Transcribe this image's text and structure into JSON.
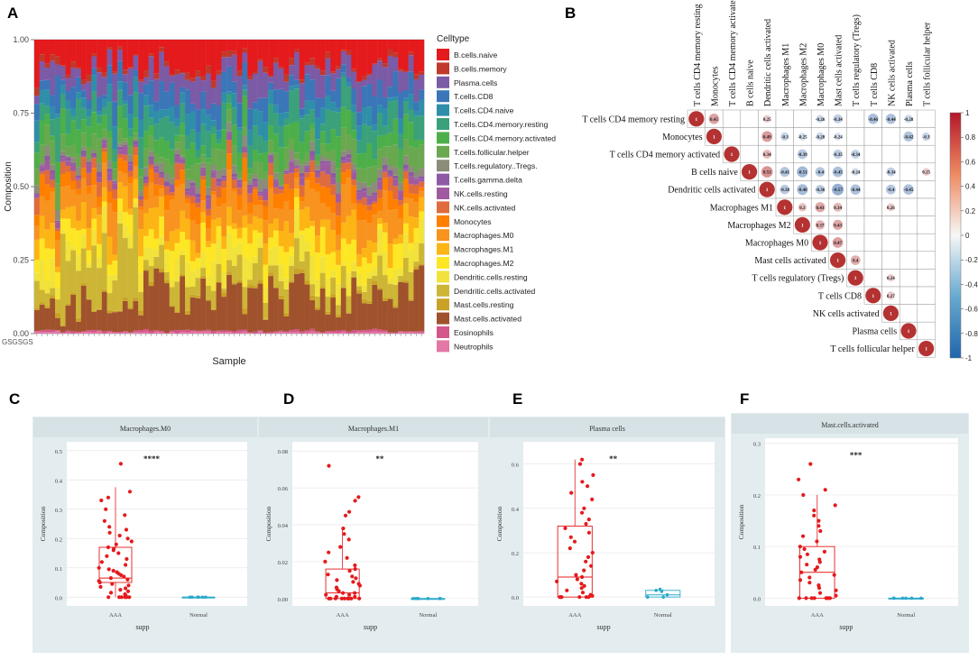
{
  "panel_labels": [
    "A",
    "B",
    "C",
    "D",
    "E",
    "F"
  ],
  "chart_data": [
    {
      "id": "A",
      "type": "bar",
      "subtype": "stacked-100",
      "xlabel": "Sample",
      "ylabel": "Composition",
      "ylim": [
        0,
        1
      ],
      "yticks": [
        "0.00",
        "0.25",
        "0.50",
        "0.75",
        "1.00"
      ],
      "xtick_text": "GSGSGS",
      "legend_title": "Celltype",
      "legend_position": "right",
      "n_samples": 75,
      "celltypes": [
        {
          "name": "B.cells.naive",
          "color": "#e41a1c"
        },
        {
          "name": "B.cells.memory",
          "color": "#c0392b"
        },
        {
          "name": "Plasma.cells",
          "color": "#7b5aa6"
        },
        {
          "name": "T.cells.CD8",
          "color": "#3a76b8"
        },
        {
          "name": "T.cells.CD4.naive",
          "color": "#2f8fa8"
        },
        {
          "name": "T.cells.CD4.memory.resting",
          "color": "#3aa17a"
        },
        {
          "name": "T.cells.CD4.memory.activated",
          "color": "#4daf4a"
        },
        {
          "name": "T.cells.follicular.helper",
          "color": "#6aa84f"
        },
        {
          "name": "T.cells.regulatory..Tregs.",
          "color": "#8c8c7a"
        },
        {
          "name": "T.cells.gamma.delta",
          "color": "#8e5aa3"
        },
        {
          "name": "NK.cells.resting",
          "color": "#a05ba0"
        },
        {
          "name": "NK.cells.activated",
          "color": "#e06b3c"
        },
        {
          "name": "Monocytes",
          "color": "#ff7f00"
        },
        {
          "name": "Macrophages.M0",
          "color": "#f7931e"
        },
        {
          "name": "Macrophages.M1",
          "color": "#fdb515"
        },
        {
          "name": "Macrophages.M2",
          "color": "#fde725"
        },
        {
          "name": "Dendritic.cells.resting",
          "color": "#f1e23c"
        },
        {
          "name": "Dendritic.cells.activated",
          "color": "#cdb536"
        },
        {
          "name": "Mast.cells.resting",
          "color": "#c9a227"
        },
        {
          "name": "Mast.cells.activated",
          "color": "#a0522d"
        },
        {
          "name": "Eosinophils",
          "color": "#d4568a"
        },
        {
          "name": "Neutrophils",
          "color": "#e377a5"
        }
      ]
    },
    {
      "id": "B",
      "type": "heatmap",
      "subtype": "correlation-upper",
      "labels": [
        "T cells CD4 memory resting",
        "Monocytes",
        "T cells CD4 memory activated",
        "B cells naive",
        "Dendritic cells activated",
        "Macrophages M1",
        "Macrophages M2",
        "Macrophages M0",
        "Mast cells activated",
        "T cells regulatory (Tregs)",
        "T cells CD8",
        "NK cells activated",
        "Plasma cells",
        "T cells follicular helper"
      ],
      "colorbar_ticks": [
        "1",
        "0.8",
        "0.6",
        "0.4",
        "0.2",
        "0",
        "-0.2",
        "-0.4",
        "-0.6",
        "-0.8",
        "-1"
      ],
      "value_range": [
        -1,
        1
      ],
      "cells": [
        {
          "r": 0,
          "c": 0,
          "v": 1
        },
        {
          "r": 0,
          "c": 1,
          "v": 0.45
        },
        {
          "r": 0,
          "c": 4,
          "v": 0.25
        },
        {
          "r": 0,
          "c": 7,
          "v": -0.26
        },
        {
          "r": 0,
          "c": 8,
          "v": -0.34
        },
        {
          "r": 0,
          "c": 10,
          "v": -0.46
        },
        {
          "r": 0,
          "c": 11,
          "v": -0.44
        },
        {
          "r": 0,
          "c": 12,
          "v": -0.28
        },
        {
          "r": 1,
          "c": 1,
          "v": 1
        },
        {
          "r": 1,
          "c": 4,
          "v": 0.49
        },
        {
          "r": 1,
          "c": 5,
          "v": -0.3
        },
        {
          "r": 1,
          "c": 6,
          "v": -0.25
        },
        {
          "r": 1,
          "c": 7,
          "v": -0.28
        },
        {
          "r": 1,
          "c": 8,
          "v": -0.24
        },
        {
          "r": 1,
          "c": 12,
          "v": -0.42
        },
        {
          "r": 1,
          "c": 13,
          "v": -0.3
        },
        {
          "r": 2,
          "c": 2,
          "v": 1
        },
        {
          "r": 2,
          "c": 4,
          "v": 0.34
        },
        {
          "r": 2,
          "c": 6,
          "v": -0.39
        },
        {
          "r": 2,
          "c": 8,
          "v": -0.35
        },
        {
          "r": 2,
          "c": 9,
          "v": -0.34
        },
        {
          "r": 3,
          "c": 3,
          "v": 1
        },
        {
          "r": 3,
          "c": 4,
          "v": 0.53
        },
        {
          "r": 3,
          "c": 5,
          "v": -0.41
        },
        {
          "r": 3,
          "c": 6,
          "v": -0.51
        },
        {
          "r": 3,
          "c": 7,
          "v": -0.4
        },
        {
          "r": 3,
          "c": 8,
          "v": -0.45
        },
        {
          "r": 3,
          "c": 9,
          "v": -0.24
        },
        {
          "r": 3,
          "c": 11,
          "v": -0.34
        },
        {
          "r": 3,
          "c": 13,
          "v": 0.25
        },
        {
          "r": 4,
          "c": 4,
          "v": 1
        },
        {
          "r": 4,
          "c": 5,
          "v": -0.38
        },
        {
          "r": 4,
          "c": 6,
          "v": -0.48
        },
        {
          "r": 4,
          "c": 7,
          "v": -0.36
        },
        {
          "r": 4,
          "c": 8,
          "v": -0.57
        },
        {
          "r": 4,
          "c": 9,
          "v": -0.44
        },
        {
          "r": 4,
          "c": 11,
          "v": -0.4
        },
        {
          "r": 4,
          "c": 12,
          "v": -0.45
        },
        {
          "r": 5,
          "c": 5,
          "v": 1
        },
        {
          "r": 5,
          "c": 6,
          "v": 0.3
        },
        {
          "r": 5,
          "c": 7,
          "v": 0.43
        },
        {
          "r": 5,
          "c": 8,
          "v": 0.34
        },
        {
          "r": 5,
          "c": 11,
          "v": 0.26
        },
        {
          "r": 6,
          "c": 6,
          "v": 1
        },
        {
          "r": 6,
          "c": 7,
          "v": 0.37
        },
        {
          "r": 6,
          "c": 8,
          "v": 0.43
        },
        {
          "r": 7,
          "c": 7,
          "v": 1
        },
        {
          "r": 7,
          "c": 8,
          "v": 0.47
        },
        {
          "r": 8,
          "c": 8,
          "v": 1
        },
        {
          "r": 8,
          "c": 9,
          "v": 0.4
        },
        {
          "r": 9,
          "c": 9,
          "v": 1
        },
        {
          "r": 9,
          "c": 11,
          "v": 0.24
        },
        {
          "r": 10,
          "c": 10,
          "v": 1
        },
        {
          "r": 10,
          "c": 11,
          "v": 0.27
        },
        {
          "r": 11,
          "c": 11,
          "v": 1
        },
        {
          "r": 12,
          "c": 12,
          "v": 1
        },
        {
          "r": 13,
          "c": 13,
          "v": 1
        }
      ]
    },
    {
      "id": "C",
      "type": "box",
      "title": "Macrophages.M0",
      "xlabel": "supp",
      "ylabel": "Composition",
      "categories": [
        "AAA",
        "Normal"
      ],
      "significance": "****",
      "ylim": [
        -0.03,
        0.53
      ],
      "yticks": [
        0.0,
        0.1,
        0.2,
        0.3,
        0.4,
        0.5
      ],
      "ytick_labels": [
        "0.0",
        "0.1",
        "0.2",
        "0.3",
        "0.4",
        "0.5"
      ],
      "boxes": [
        {
          "group": "AAA",
          "min": 0.0,
          "q1": 0.05,
          "median": 0.065,
          "q3": 0.17,
          "max": 0.375,
          "color": "#e41a1c"
        },
        {
          "group": "Normal",
          "min": 0.0,
          "q1": 0.0,
          "median": 0.0,
          "q3": 0.0,
          "max": 0.0,
          "color": "#2aa9c9"
        }
      ],
      "points_aaa": [
        0.455,
        0.36,
        0.34,
        0.33,
        0.3,
        0.28,
        0.26,
        0.24,
        0.23,
        0.22,
        0.21,
        0.2,
        0.19,
        0.18,
        0.17,
        0.165,
        0.16,
        0.15,
        0.14,
        0.13,
        0.12,
        0.11,
        0.1,
        0.095,
        0.09,
        0.085,
        0.08,
        0.075,
        0.07,
        0.065,
        0.06,
        0.055,
        0.05,
        0.045,
        0.04,
        0.035,
        0.03,
        0.025,
        0.02,
        0.015,
        0.01,
        0.005,
        0.0,
        0.0,
        0.0,
        0.0,
        0.0,
        0.0
      ],
      "points_normal": [
        0,
        0,
        0,
        0,
        0,
        0
      ]
    },
    {
      "id": "D",
      "type": "box",
      "title": "Macrophages.M1",
      "xlabel": "supp",
      "ylabel": "Composition",
      "categories": [
        "AAA",
        "Normal"
      ],
      "significance": "**",
      "ylim": [
        -0.004,
        0.085
      ],
      "yticks": [
        0.0,
        0.02,
        0.04,
        0.06,
        0.08
      ],
      "ytick_labels": [
        "0.00",
        "0.02",
        "0.04",
        "0.06",
        "0.08"
      ],
      "boxes": [
        {
          "group": "AAA",
          "min": 0.0,
          "q1": 0.0,
          "median": 0.003,
          "q3": 0.016,
          "max": 0.038,
          "color": "#e41a1c"
        },
        {
          "group": "Normal",
          "min": 0.0,
          "q1": 0.0,
          "median": 0.0,
          "q3": 0.0,
          "max": 0.0,
          "color": "#2aa9c9"
        }
      ],
      "points_aaa": [
        0.072,
        0.055,
        0.053,
        0.047,
        0.045,
        0.038,
        0.035,
        0.032,
        0.028,
        0.025,
        0.022,
        0.02,
        0.018,
        0.016,
        0.015,
        0.013,
        0.012,
        0.011,
        0.01,
        0.009,
        0.008,
        0.007,
        0.006,
        0.005,
        0.004,
        0.003,
        0.003,
        0.002,
        0.002,
        0.001,
        0.001,
        0.0,
        0.0,
        0.0,
        0.0,
        0.0,
        0.0,
        0.0,
        0.0,
        0.0
      ],
      "points_normal": [
        0,
        0,
        0,
        0,
        0,
        0
      ]
    },
    {
      "id": "E",
      "type": "box",
      "title": "Plasma cells",
      "xlabel": "supp",
      "ylabel": "Composition",
      "categories": [
        "AAA",
        "Normal"
      ],
      "significance": "**",
      "ylim": [
        -0.04,
        0.7
      ],
      "yticks": [
        0.0,
        0.2,
        0.4,
        0.6
      ],
      "ytick_labels": [
        "0.0",
        "0.2",
        "0.4",
        "0.6"
      ],
      "boxes": [
        {
          "group": "AAA",
          "min": 0.0,
          "q1": 0.0,
          "median": 0.09,
          "q3": 0.32,
          "max": 0.62,
          "color": "#e41a1c"
        },
        {
          "group": "Normal",
          "min": 0.0,
          "q1": 0.0,
          "median": 0.01,
          "q3": 0.03,
          "max": 0.035,
          "color": "#2aa9c9"
        }
      ],
      "points_aaa": [
        0.62,
        0.6,
        0.55,
        0.52,
        0.5,
        0.47,
        0.44,
        0.4,
        0.38,
        0.35,
        0.33,
        0.31,
        0.29,
        0.27,
        0.25,
        0.22,
        0.2,
        0.18,
        0.16,
        0.14,
        0.12,
        0.1,
        0.09,
        0.08,
        0.07,
        0.06,
        0.05,
        0.04,
        0.03,
        0.02,
        0.01,
        0.005,
        0.0,
        0.0,
        0.0,
        0.0,
        0.0,
        0.0
      ],
      "points_normal": [
        0.035,
        0.03,
        0.025,
        0.01,
        0.0,
        0.0
      ]
    },
    {
      "id": "F",
      "type": "box",
      "title": "Mast.cells.activated",
      "xlabel": "supp",
      "ylabel": "Composition",
      "categories": [
        "AAA",
        "Normal"
      ],
      "significance": "***",
      "ylim": [
        -0.015,
        0.31
      ],
      "yticks": [
        0.0,
        0.1,
        0.2,
        0.3
      ],
      "ytick_labels": [
        "0.0",
        "0.1",
        "0.2",
        "0.3"
      ],
      "boxes": [
        {
          "group": "AAA",
          "min": 0.0,
          "q1": 0.0,
          "median": 0.05,
          "q3": 0.1,
          "max": 0.2,
          "color": "#e41a1c"
        },
        {
          "group": "Normal",
          "min": 0.0,
          "q1": 0.0,
          "median": 0.0,
          "q3": 0.0,
          "max": 0.0,
          "color": "#2aa9c9"
        }
      ],
      "points_aaa": [
        0.26,
        0.23,
        0.21,
        0.2,
        0.18,
        0.17,
        0.16,
        0.15,
        0.14,
        0.13,
        0.12,
        0.11,
        0.1,
        0.095,
        0.09,
        0.085,
        0.08,
        0.075,
        0.07,
        0.065,
        0.06,
        0.055,
        0.05,
        0.045,
        0.04,
        0.035,
        0.03,
        0.025,
        0.02,
        0.015,
        0.01,
        0.005,
        0.0,
        0.0,
        0.0,
        0.0,
        0.0,
        0.0,
        0.0
      ],
      "points_normal": [
        0,
        0,
        0,
        0,
        0,
        0
      ]
    }
  ]
}
